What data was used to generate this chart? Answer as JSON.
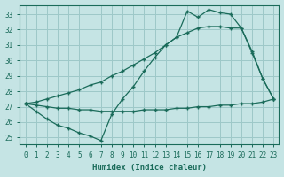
{
  "xlabel": "Humidex (Indice chaleur)",
  "xlim": [
    -0.5,
    23.5
  ],
  "ylim": [
    24.55,
    33.6
  ],
  "yticks": [
    25,
    26,
    27,
    28,
    29,
    30,
    31,
    32,
    33
  ],
  "xticks": [
    0,
    1,
    2,
    3,
    4,
    5,
    6,
    7,
    8,
    9,
    10,
    11,
    12,
    13,
    14,
    15,
    16,
    17,
    18,
    19,
    20,
    21,
    22,
    23
  ],
  "bg_color": "#c5e4e4",
  "grid_color": "#9dc8c8",
  "line_color": "#1a6b5a",
  "line1_x": [
    0,
    1,
    2,
    3,
    4,
    5,
    6,
    7,
    8,
    9,
    10,
    11,
    12,
    13,
    14,
    15,
    16,
    17,
    18,
    19,
    20,
    21,
    22,
    23
  ],
  "line1_y": [
    27.2,
    27.1,
    27.0,
    26.9,
    26.9,
    26.8,
    26.8,
    26.7,
    26.7,
    26.7,
    26.7,
    26.8,
    26.8,
    26.8,
    26.9,
    26.9,
    27.0,
    27.0,
    27.1,
    27.1,
    27.2,
    27.2,
    27.3,
    27.5
  ],
  "line2_x": [
    0,
    1,
    2,
    3,
    4,
    5,
    6,
    7,
    8,
    9,
    10,
    11,
    12,
    13,
    14,
    15,
    16,
    17,
    18,
    19,
    20,
    21,
    22,
    23
  ],
  "line2_y": [
    27.2,
    26.7,
    26.2,
    25.8,
    25.6,
    25.3,
    25.1,
    24.8,
    26.5,
    27.5,
    28.3,
    29.3,
    30.2,
    31.0,
    31.5,
    33.2,
    32.8,
    33.3,
    33.1,
    33.0,
    32.1,
    30.5,
    28.8,
    27.5
  ],
  "line3_x": [
    0,
    1,
    2,
    3,
    4,
    5,
    6,
    7,
    8,
    9,
    10,
    11,
    12,
    13,
    14,
    15,
    16,
    17,
    18,
    19,
    20,
    21,
    22,
    23
  ],
  "line3_y": [
    27.2,
    27.3,
    27.5,
    27.7,
    27.9,
    28.1,
    28.4,
    28.6,
    29.0,
    29.3,
    29.7,
    30.1,
    30.5,
    31.0,
    31.5,
    31.8,
    32.1,
    32.2,
    32.2,
    32.1,
    32.1,
    30.6,
    28.8,
    27.5
  ]
}
